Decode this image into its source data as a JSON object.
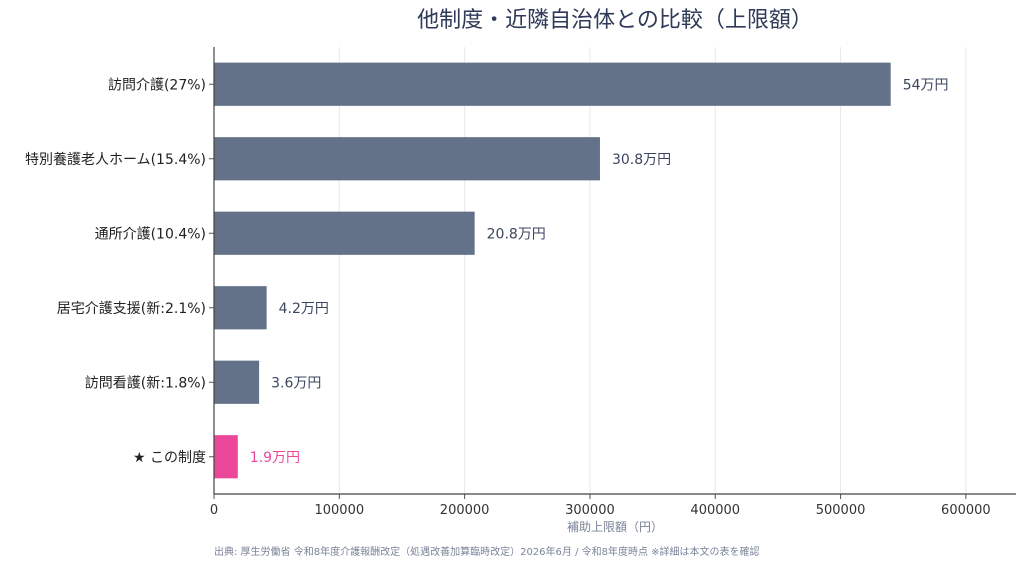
{
  "chart_data": {
    "type": "bar",
    "orientation": "horizontal",
    "title": "他制度・近隣自治体との比較（上限額）",
    "xlabel": "補助上限額（円）",
    "ylabel": "",
    "xlim": [
      0,
      640000
    ],
    "xticks": [
      0,
      100000,
      200000,
      300000,
      400000,
      500000,
      600000
    ],
    "grid": true,
    "categories": [
      "訪問介護(27%)",
      "特別養護老人ホーム(15.4%)",
      "通所介護(10.4%)",
      "居宅介護支援(新:2.1%)",
      "訪問看護(新:1.8%)",
      "★ この制度"
    ],
    "values": [
      540000,
      308000,
      208000,
      42000,
      36000,
      19000
    ],
    "data_labels": [
      "54万円",
      "30.8万円",
      "20.8万円",
      "4.2万円",
      "3.6万円",
      "1.9万円"
    ],
    "colors": [
      "#637289",
      "#637289",
      "#637289",
      "#637289",
      "#637289",
      "#ec4899"
    ]
  },
  "footer": {
    "source": "出典: 厚生労働省 令和8年度介護報酬改定（処遇改善加算臨時改定）2026年6月 / 令和8年度時点 ※詳細は本文の表を確認"
  }
}
